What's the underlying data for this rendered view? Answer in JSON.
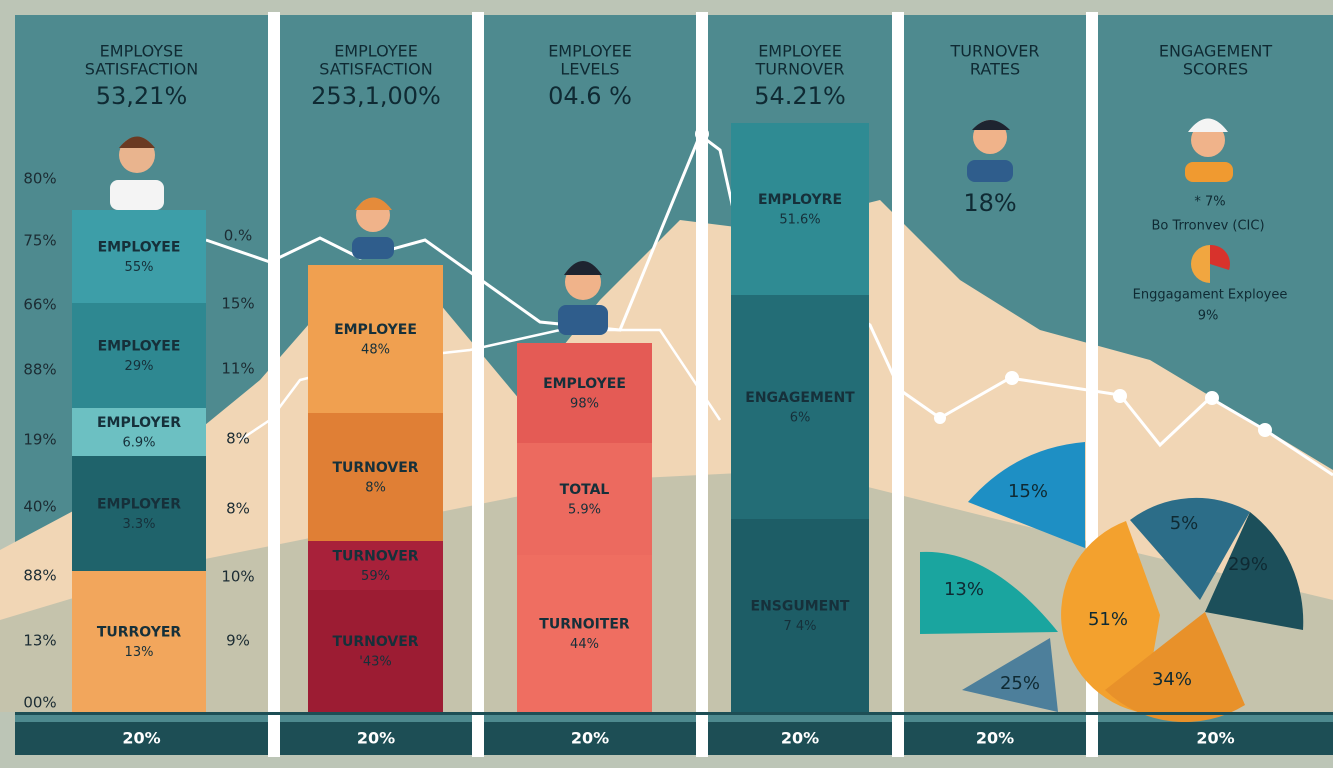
{
  "axis_labels_left": [
    "80%",
    "75%",
    "66%",
    "88%",
    "19%",
    "40%",
    "88%",
    "13%",
    "00%"
  ],
  "axis_labels_middle": [
    "0.%",
    "15%",
    "11%",
    "8%",
    "8%",
    "10%",
    "9%"
  ],
  "panels": [
    {
      "title": [
        "EMPLOYSE",
        "SATISFACTION"
      ],
      "headline": "53,21%",
      "footer": "20%",
      "segments": [
        {
          "label": "EMPLOYEE",
          "value": "55%"
        },
        {
          "label": "EMPLOYEE",
          "value": "29%"
        },
        {
          "label": "EMPLOYER",
          "value": "6.9%"
        },
        {
          "label": "EMPLOYER",
          "value": "3.3%"
        },
        {
          "label": "TURROYER",
          "value": "13%"
        }
      ]
    },
    {
      "title": [
        "EMPLOYEE",
        "SATISFACTION"
      ],
      "headline": "253,1,00%",
      "footer": "20%",
      "segments": [
        {
          "label": "EMPLOYEE",
          "value": "48%"
        },
        {
          "label": "TURNOVER",
          "value": "8%"
        },
        {
          "label": "TURNOVER",
          "value": "59%"
        },
        {
          "label": "TURNOVER",
          "value": "'43%"
        }
      ]
    },
    {
      "title": [
        "EMPLOYEE",
        "LEVELS"
      ],
      "headline": "04.6 %",
      "footer": "20%",
      "segments": [
        {
          "label": "EMPLOYEE",
          "value": "98%"
        },
        {
          "label": "TOTAL",
          "value": "5.9%"
        },
        {
          "label": "TURNOITER",
          "value": "44%"
        }
      ]
    },
    {
      "title": [
        "EMPLOYEE",
        "TURNOVER"
      ],
      "headline": "54.21%",
      "footer": "20%",
      "segments": [
        {
          "label": "EMPLOYRE",
          "value": "51.6%"
        },
        {
          "label": "ENGAGEMENT",
          "value": "6%"
        },
        {
          "label": "ENSGUMENT",
          "value": "7 4%"
        }
      ]
    },
    {
      "title": [
        "TURNOVER",
        "RATES"
      ],
      "headline": "18%",
      "footer": "20%",
      "pie_labels": [
        "15%",
        "13%",
        "25%"
      ]
    },
    {
      "title": [
        "ENGAGEMENT",
        "SCORES"
      ],
      "footer": "20%",
      "notes": [
        "* 7%",
        "Bo Trronvev (CIC)",
        "Enggagament Exployee",
        "9%"
      ],
      "pie_labels": [
        "5%",
        "29%",
        "51%",
        "34%"
      ]
    }
  ]
}
